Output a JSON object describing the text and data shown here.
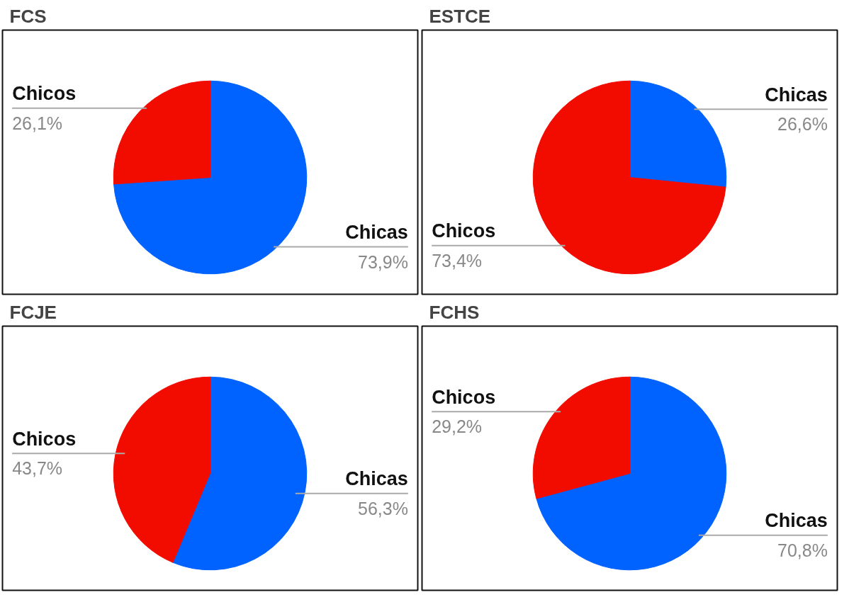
{
  "chart_data": [
    {
      "type": "pie",
      "title": "FCS",
      "categories": [
        "Chicas",
        "Chicos"
      ],
      "values": [
        73.9,
        26.1
      ],
      "colors": [
        "#0062ff",
        "#f20c00"
      ],
      "value_labels": [
        "73,9%",
        "26,1%"
      ],
      "legend": false
    },
    {
      "type": "pie",
      "title": "ESTCE",
      "categories": [
        "Chicas",
        "Chicos"
      ],
      "values": [
        26.6,
        73.4
      ],
      "colors": [
        "#0062ff",
        "#f20c00"
      ],
      "value_labels": [
        "26,6%",
        "73,4%"
      ],
      "legend": false
    },
    {
      "type": "pie",
      "title": "FCJE",
      "categories": [
        "Chicas",
        "Chicos"
      ],
      "values": [
        56.3,
        43.7
      ],
      "colors": [
        "#0062ff",
        "#f20c00"
      ],
      "value_labels": [
        "56,3%",
        "43,7%"
      ],
      "legend": false
    },
    {
      "type": "pie",
      "title": "FCHS",
      "categories": [
        "Chicas",
        "Chicos"
      ],
      "values": [
        70.8,
        29.2
      ],
      "colors": [
        "#0062ff",
        "#f20c00"
      ],
      "value_labels": [
        "70,8%",
        "29,2%"
      ],
      "legend": false
    }
  ]
}
